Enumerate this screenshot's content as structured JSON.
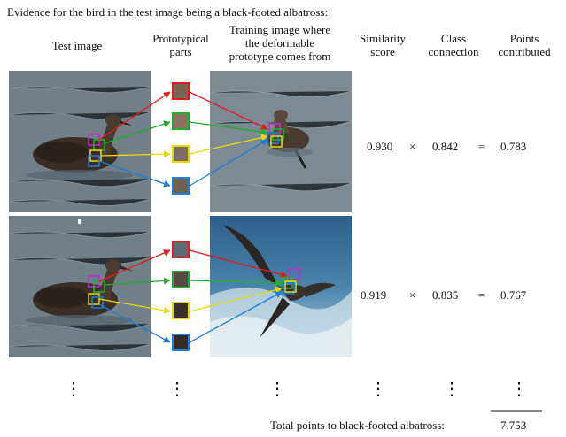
{
  "caption": "Evidence for the bird in the test image being a black-footed albatross:",
  "headers": {
    "test_image": "Test image",
    "prototypical_parts": [
      "Prototypical",
      "parts"
    ],
    "training_image": [
      "Training image where",
      "the deformable",
      "prototype comes from"
    ],
    "similarity": [
      "Similarity",
      "score"
    ],
    "class_connection": [
      "Class",
      "connection"
    ],
    "points": [
      "Points",
      "contributed"
    ]
  },
  "rows": [
    {
      "similarity": "0.930",
      "times": "×",
      "connection": "0.842",
      "equals": "=",
      "points": "0.783"
    },
    {
      "similarity": "0.919",
      "times": "×",
      "connection": "0.835",
      "equals": "=",
      "points": "0.767"
    }
  ],
  "ellipsis": "⋮",
  "total": {
    "label": "Total points to black-footed albatross:",
    "value": "7.753"
  },
  "colors": {
    "red": "#e41a1c",
    "green": "#1fae2d",
    "yellow": "#e8d900",
    "blue": "#1c7ed6",
    "magenta": "#c02bd0",
    "water": "#6e7f88",
    "bird": "#3a2e26"
  }
}
